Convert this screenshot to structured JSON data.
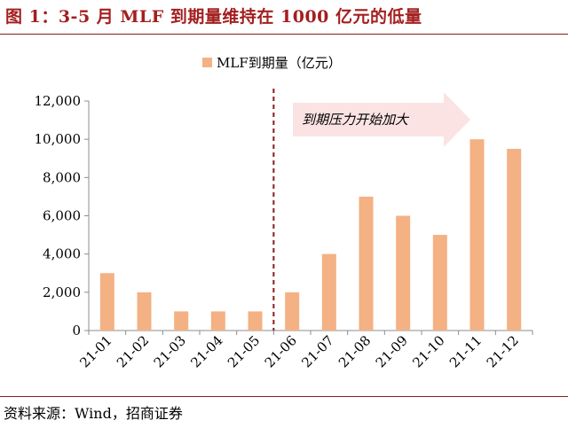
{
  "figure": {
    "title": "图 1：3-5 月 MLF 到期量维持在 1000 亿元的低量",
    "source": "资料来源：Wind，招商证券"
  },
  "colors": {
    "bar": "#f4b183",
    "title": "#a31f1f",
    "rule": "#8b1c1c",
    "marker_line": "#8b1c1c",
    "arrow": "#fbe3e3"
  },
  "chart_data": {
    "type": "bar",
    "categories": [
      "21-01",
      "21-02",
      "21-03",
      "21-04",
      "21-05",
      "21-06",
      "21-07",
      "21-08",
      "21-09",
      "21-10",
      "21-11",
      "21-12"
    ],
    "series": [
      {
        "name": "MLF到期量（亿元）",
        "values": [
          3000,
          2000,
          1000,
          1000,
          1000,
          2000,
          4000,
          7000,
          6000,
          5000,
          10000,
          9500
        ]
      }
    ],
    "ylim": [
      0,
      12000
    ],
    "yticks": [
      "0",
      "2,000",
      "4,000",
      "6,000",
      "8,000",
      "10,000",
      "12,000"
    ],
    "ytick_values": [
      0,
      2000,
      4000,
      6000,
      8000,
      10000,
      12000
    ],
    "grid": false,
    "legend": "top-center",
    "annotation": {
      "text": "到期压力开始加大",
      "divider_after_category": "21-05"
    }
  }
}
